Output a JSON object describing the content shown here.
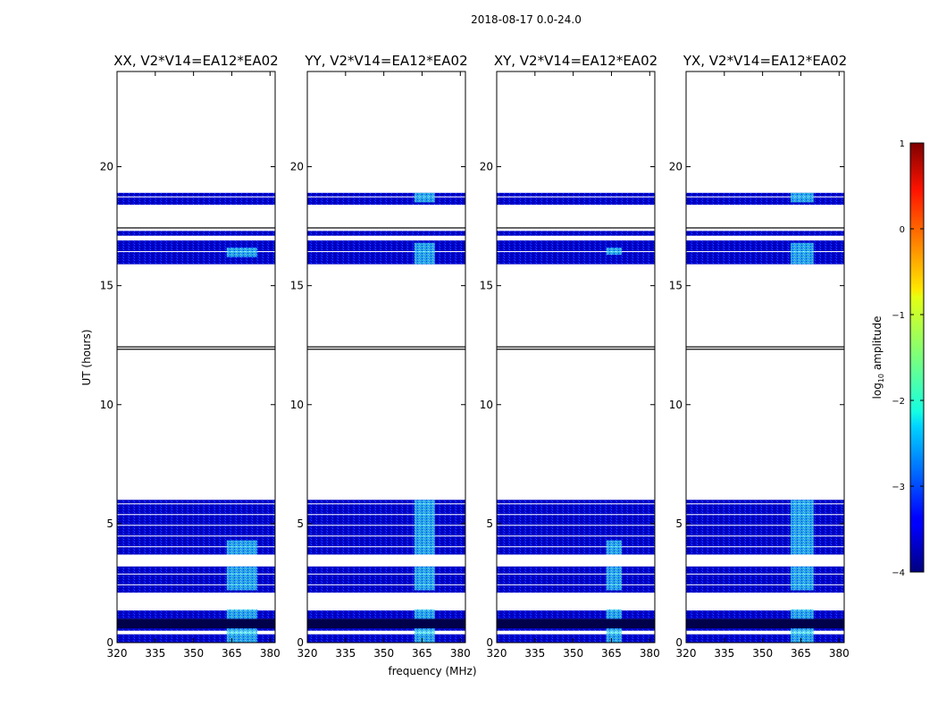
{
  "chart_data": {
    "type": "heatmap",
    "suptitle": "2018-08-17 0.0-24.0",
    "xlabel": "frequency (MHz)",
    "ylabel": "UT (hours)",
    "xlim": [
      320,
      382
    ],
    "ylim": [
      0,
      24
    ],
    "xticks": [
      320,
      335,
      350,
      365,
      380
    ],
    "yticks": [
      0,
      5,
      10,
      15,
      20
    ],
    "panels": [
      {
        "title": "XX, V2*V14=EA12*EA02",
        "bright_band_mhz": [
          363,
          375
        ],
        "bright_ut_ranges": [
          [
            0,
            0.6
          ],
          [
            1.0,
            1.4
          ],
          [
            2.2,
            3.2
          ],
          [
            3.7,
            4.3
          ],
          [
            16.2,
            16.6
          ]
        ]
      },
      {
        "title": "YY, V2*V14=EA12*EA02",
        "bright_band_mhz": [
          362,
          370
        ],
        "bright_ut_ranges": [
          [
            0,
            0.6
          ],
          [
            1.0,
            1.4
          ],
          [
            2.2,
            3.2
          ],
          [
            3.7,
            6.0
          ],
          [
            15.9,
            16.8
          ],
          [
            18.5,
            18.9
          ]
        ]
      },
      {
        "title": "XY, V2*V14=EA12*EA02",
        "bright_band_mhz": [
          363,
          369
        ],
        "bright_ut_ranges": [
          [
            0,
            0.6
          ],
          [
            1.0,
            1.4
          ],
          [
            2.2,
            3.2
          ],
          [
            3.7,
            4.3
          ],
          [
            16.3,
            16.6
          ]
        ]
      },
      {
        "title": "YX, V2*V14=EA12*EA02",
        "bright_band_mhz": [
          361,
          370
        ],
        "bright_ut_ranges": [
          [
            0,
            0.6
          ],
          [
            1.0,
            1.4
          ],
          [
            2.2,
            3.2
          ],
          [
            3.7,
            6.0
          ],
          [
            15.9,
            16.8
          ],
          [
            18.5,
            18.9
          ]
        ]
      }
    ],
    "data_ut_ranges": [
      [
        0.0,
        0.35
      ],
      [
        0.5,
        0.6
      ],
      [
        0.65,
        1.0
      ],
      [
        1.0,
        1.35
      ],
      [
        2.1,
        3.2
      ],
      [
        3.7,
        6.0
      ],
      [
        15.9,
        16.9
      ],
      [
        17.1,
        17.3
      ],
      [
        18.4,
        18.9
      ]
    ],
    "empty_row_markers": [
      12.35,
      12.45,
      17.45
    ],
    "colorbar": {
      "label_prefix": "log",
      "label_sub": "10",
      "label_suffix": " amplitude",
      "min": -4,
      "max": 1,
      "ticks": [
        1,
        0,
        -1,
        -2,
        -3,
        -4
      ],
      "tick_labels": [
        "1",
        "0",
        "−1",
        "−2",
        "−3",
        "−4"
      ],
      "colormap": "jet"
    }
  }
}
